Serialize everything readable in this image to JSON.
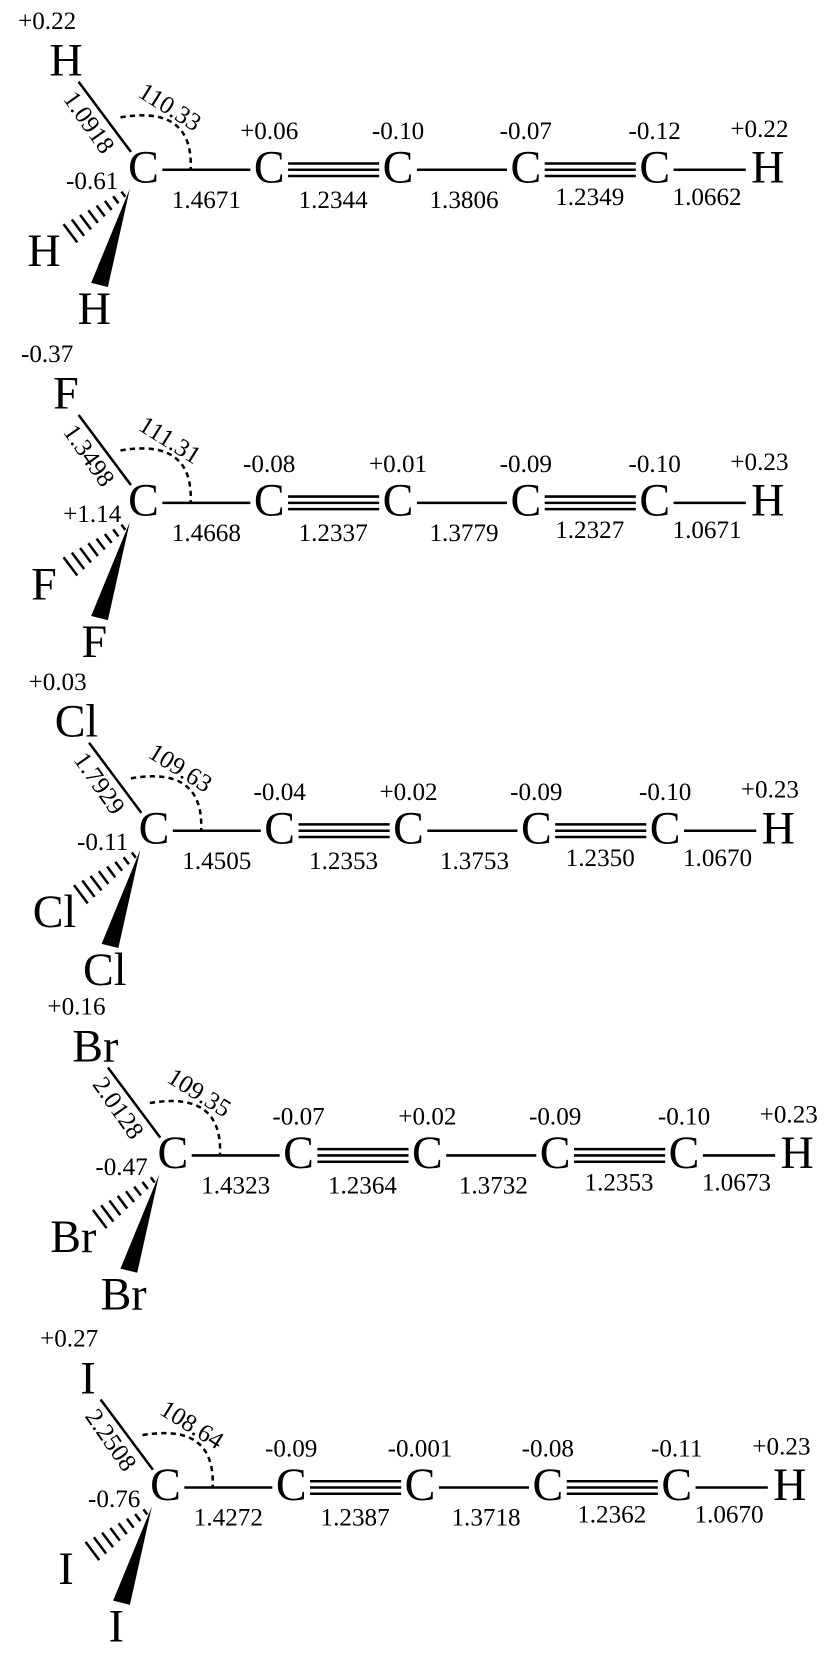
{
  "molecules": [
    {
      "atoms": [
        "H",
        "H",
        "H",
        "C",
        "C",
        "C",
        "C",
        "C",
        "H"
      ],
      "charges": [
        "+0.22",
        "-0.61",
        "+0.06",
        "-0.10",
        "-0.07",
        "-0.12",
        "+0.22"
      ],
      "angle": "110.33",
      "bonds": [
        "1.0918",
        "1.4671",
        "1.2344",
        "1.3806",
        "1.2349",
        "1.0662"
      ]
    },
    {
      "atoms": [
        "F",
        "F",
        "F",
        "C",
        "C",
        "C",
        "C",
        "C",
        "H"
      ],
      "charges": [
        "-0.37",
        "+1.14",
        "-0.08",
        "+0.01",
        "-0.09",
        "-0.10",
        "+0.23"
      ],
      "angle": "111.31",
      "bonds": [
        "1.3498",
        "1.4668",
        "1.2337",
        "1.3779",
        "1.2327",
        "1.0671"
      ]
    },
    {
      "atoms": [
        "Cl",
        "Cl",
        "Cl",
        "C",
        "C",
        "C",
        "C",
        "C",
        "H"
      ],
      "charges": [
        "+0.03",
        "-0.11",
        "-0.04",
        "+0.02",
        "-0.09",
        "-0.10",
        "+0.23"
      ],
      "angle": "109.63",
      "bonds": [
        "1.7929",
        "1.4505",
        "1.2353",
        "1.3753",
        "1.2350",
        "1.0670"
      ]
    },
    {
      "atoms": [
        "Br",
        "Br",
        "Br",
        "C",
        "C",
        "C",
        "C",
        "C",
        "H"
      ],
      "charges": [
        "+0.16",
        "-0.47",
        "-0.07",
        "+0.02",
        "-0.09",
        "-0.10",
        "+0.23"
      ],
      "angle": "109.35",
      "bonds": [
        "2.0128",
        "1.4323",
        "1.2364",
        "1.3732",
        "1.2353",
        "1.0673"
      ]
    },
    {
      "atoms": [
        "I",
        "I",
        "I",
        "C",
        "C",
        "C",
        "C",
        "C",
        "H"
      ],
      "charges": [
        "+0.27",
        "-0.76",
        "-0.09",
        "-0.001",
        "-0.08",
        "-0.11",
        "+0.23"
      ],
      "angle": "108.64",
      "bonds": [
        "2.2508",
        "1.4272",
        "1.2387",
        "1.3718",
        "1.2362",
        "1.0670"
      ]
    }
  ]
}
